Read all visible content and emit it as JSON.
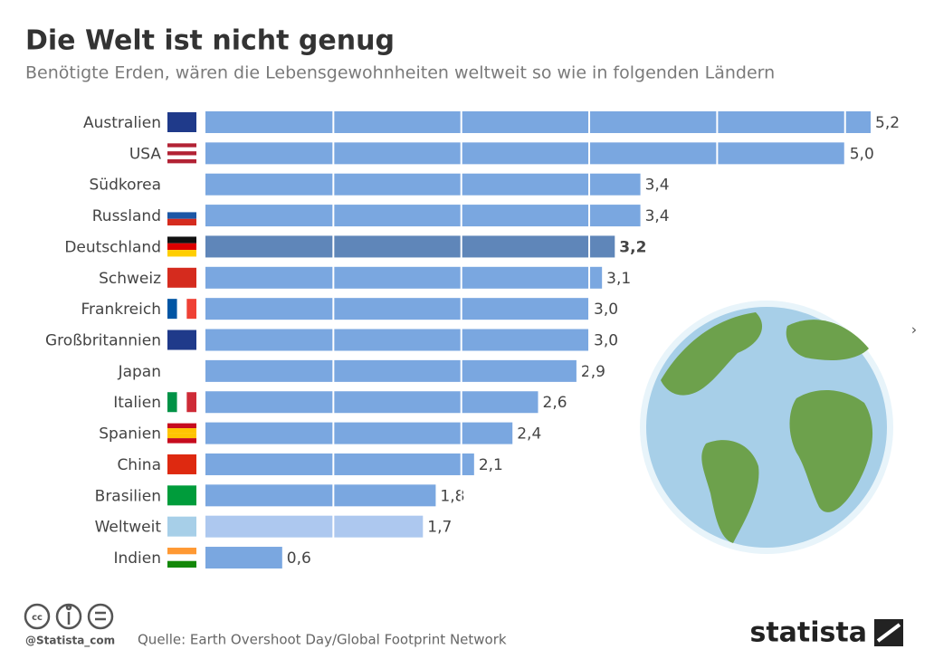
{
  "chart_data": {
    "type": "hbar",
    "title": "Die Welt ist nicht genug",
    "subtitle": "Benötigte Erden, wären die Lebensgewohnheiten weltweit so wie in folgenden Ländern",
    "categories": [
      "Australien",
      "USA",
      "Südkorea",
      "Russland",
      "Deutschland",
      "Schweiz",
      "Frankreich",
      "Großbritannien",
      "Japan",
      "Italien",
      "Spanien",
      "China",
      "Brasilien",
      "Weltweit",
      "Indien"
    ],
    "values": [
      5.2,
      5.0,
      3.4,
      3.4,
      3.2,
      3.1,
      3.0,
      3.0,
      2.9,
      2.6,
      2.4,
      2.1,
      1.8,
      1.7,
      0.6
    ],
    "value_labels": [
      "5,2",
      "5,0",
      "3,4",
      "3,4",
      "3,2",
      "3,1",
      "3,0",
      "3,0",
      "2,9",
      "2,6",
      "2,4",
      "2,1",
      "1,8",
      "1,7",
      "0,6"
    ],
    "colors": [
      "#7aa7e0",
      "#7aa7e0",
      "#7aa7e0",
      "#7aa7e0",
      "#5f86b9",
      "#7aa7e0",
      "#7aa7e0",
      "#7aa7e0",
      "#7aa7e0",
      "#7aa7e0",
      "#7aa7e0",
      "#7aa7e0",
      "#7aa7e0",
      "#adc8ef",
      "#7aa7e0"
    ],
    "xlim": [
      0,
      5.2
    ],
    "xgrid": [
      1,
      2,
      3,
      4,
      5
    ],
    "grid": true,
    "source": "Quelle: Earth Overshoot Day/Global Footprint Network",
    "credit": "@Statista_com",
    "brand": "statista"
  }
}
